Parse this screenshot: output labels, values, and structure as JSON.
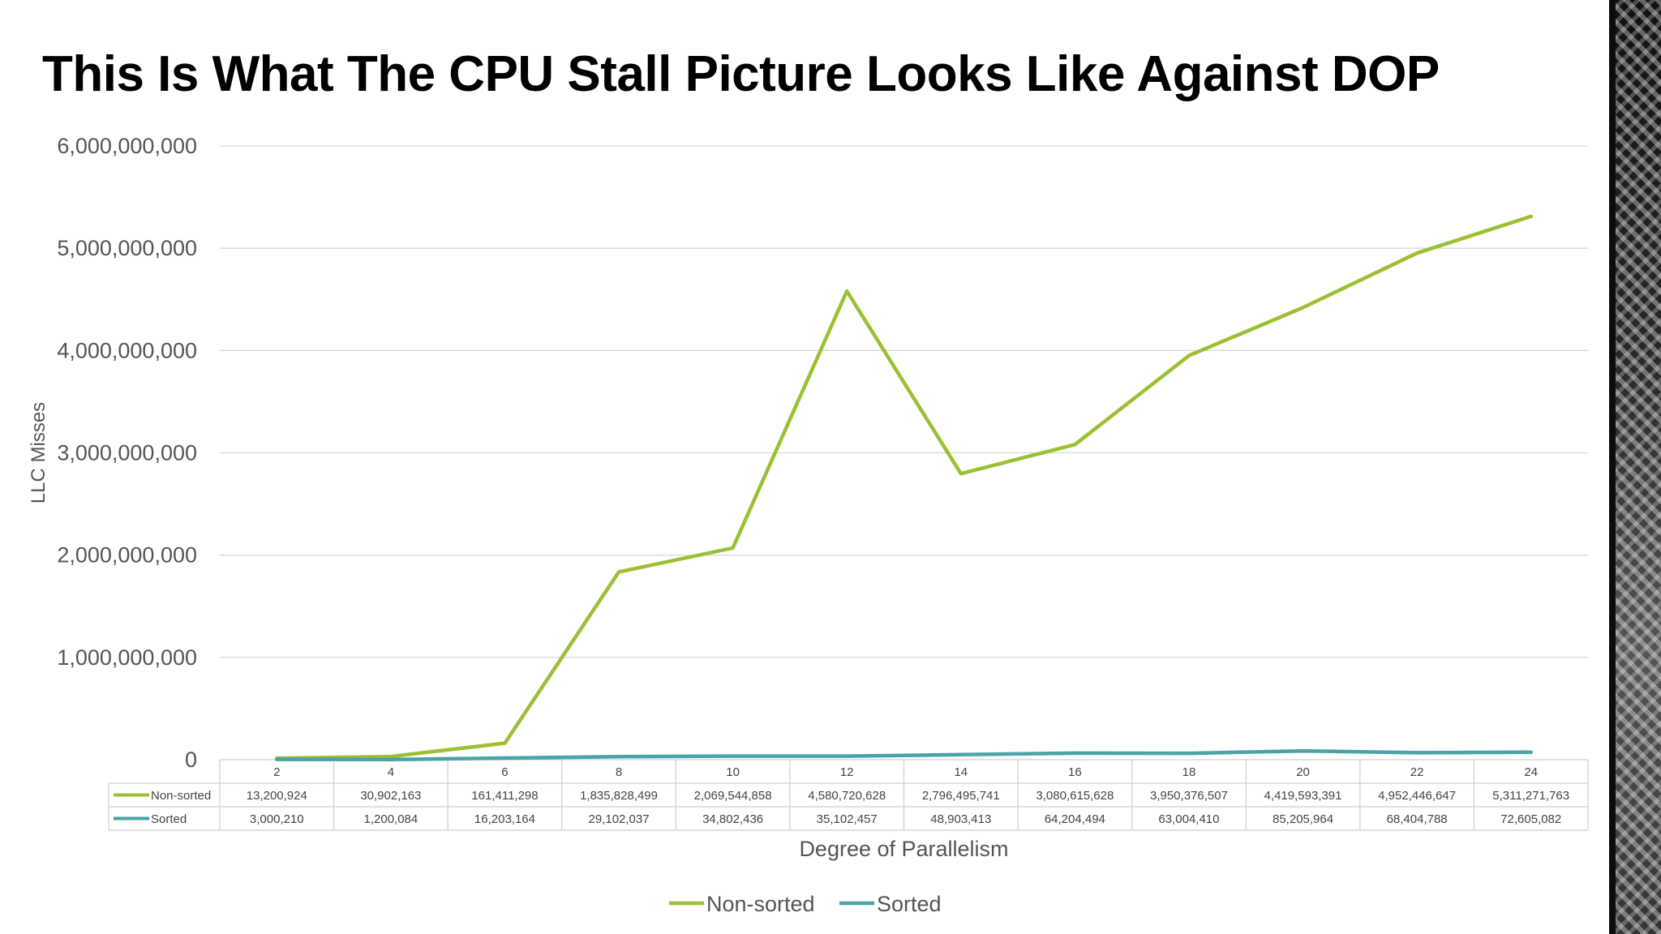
{
  "slide": {
    "title": "This Is What The CPU Stall Picture Looks Like Against DOP"
  },
  "chart_data": {
    "type": "line",
    "x": [
      2,
      4,
      6,
      8,
      10,
      12,
      14,
      16,
      18,
      20,
      22,
      24
    ],
    "categories": [
      "2",
      "4",
      "6",
      "8",
      "10",
      "12",
      "14",
      "16",
      "18",
      "20",
      "22",
      "24"
    ],
    "series": [
      {
        "name": "Non-sorted",
        "color": "#9bc132",
        "values": [
          13200924,
          30902163,
          161411298,
          1835828499,
          2069544858,
          4580720628,
          2796495741,
          3080615628,
          3950376507,
          4419593391,
          4952446647,
          5311271763
        ],
        "labels": [
          "13,200,924",
          "30,902,163",
          "161,411,298",
          "1,835,828,499",
          "2,069,544,858",
          "4,580,720,628",
          "2,796,495,741",
          "3,080,615,628",
          "3,950,376,507",
          "4,419,593,391",
          "4,952,446,647",
          "5,311,271,763"
        ]
      },
      {
        "name": "Sorted",
        "color": "#4aa3a8",
        "values": [
          3000210,
          1200084,
          16203164,
          29102037,
          34802436,
          35102457,
          48903413,
          64204494,
          63004410,
          85205964,
          68404788,
          72605082
        ],
        "labels": [
          "3,000,210",
          "1,200,084",
          "16,203,164",
          "29,102,037",
          "34,802,436",
          "35,102,457",
          "48,903,413",
          "64,204,494",
          "63,004,410",
          "85,205,964",
          "68,404,788",
          "72,605,082"
        ]
      }
    ],
    "xlabel": "Degree of Parallelism",
    "ylabel": "LLC Misses",
    "ylim": [
      0,
      6000000000
    ],
    "yticks": [
      0,
      1000000000,
      2000000000,
      3000000000,
      4000000000,
      5000000000,
      6000000000
    ],
    "ytick_labels": [
      "0",
      "1,000,000,000",
      "2,000,000,000",
      "3,000,000,000",
      "4,000,000,000",
      "5,000,000,000",
      "6,000,000,000"
    ],
    "grid": true,
    "legend": "bottom",
    "data_table": true
  }
}
